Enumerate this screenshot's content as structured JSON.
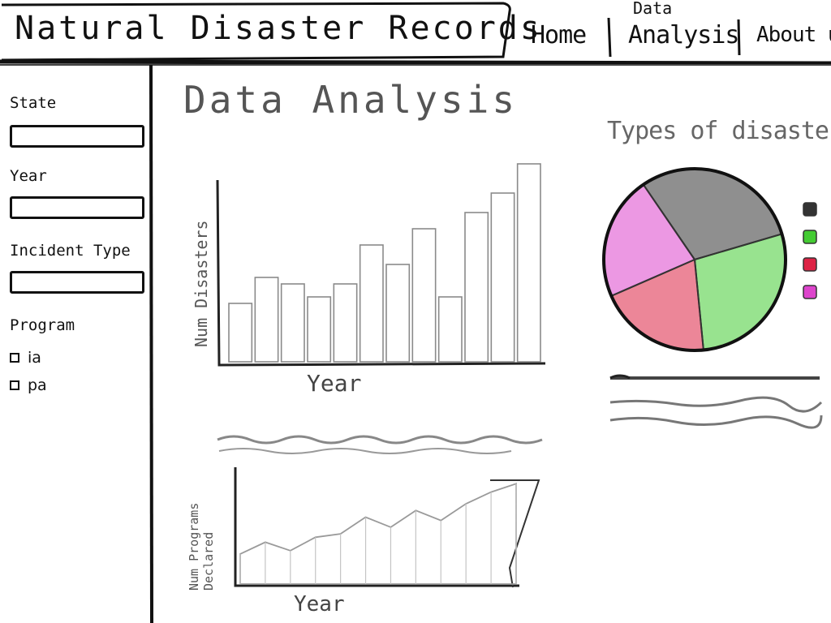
{
  "header": {
    "title": "Natural Disaster Records",
    "nav": {
      "home": "Home",
      "data_top": "Data",
      "data_bottom": "Analysis",
      "about": "About us"
    }
  },
  "sidebar": {
    "state_label": "State",
    "year_label": "Year",
    "incident_label": "Incident Type",
    "program_label": "Program",
    "program_options": [
      "ia",
      "pa"
    ]
  },
  "main": {
    "heading": "Data Analysis",
    "bar_chart": {
      "ylabel": "Num Disasters",
      "xlabel": "Year"
    },
    "area_chart": {
      "ylabel": "Num Programs Declared",
      "xlabel": "Year"
    },
    "pie_chart": {
      "title": "Types of disasters",
      "legend_colors": [
        "#333333",
        "#44cc33",
        "#dd2244",
        "#dd44cc"
      ]
    }
  },
  "chart_data": [
    {
      "type": "bar",
      "ylabel": "Num Disasters",
      "xlabel": "Year",
      "values": [
        18,
        26,
        24,
        20,
        24,
        36,
        30,
        41,
        20,
        46,
        52,
        61
      ]
    },
    {
      "type": "area",
      "ylabel": "Num Programs Declared",
      "xlabel": "Year",
      "values": [
        18,
        25,
        20,
        28,
        30,
        40,
        34,
        44,
        38,
        48,
        55,
        60
      ]
    },
    {
      "type": "pie",
      "title": "Types of disasters",
      "values": [
        30,
        28,
        20,
        22
      ],
      "colors": [
        "#333333",
        "#44cc33",
        "#dd2244",
        "#dd44cc"
      ]
    }
  ]
}
